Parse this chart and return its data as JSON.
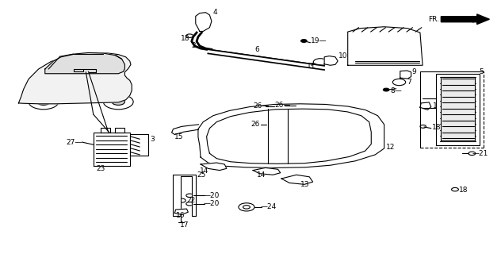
{
  "bg_color": "#ffffff",
  "fig_width": 6.32,
  "fig_height": 3.2,
  "dpi": 100,
  "line_color": "#000000",
  "text_color": "#000000",
  "lw": 0.8,
  "fs": 6.5
}
